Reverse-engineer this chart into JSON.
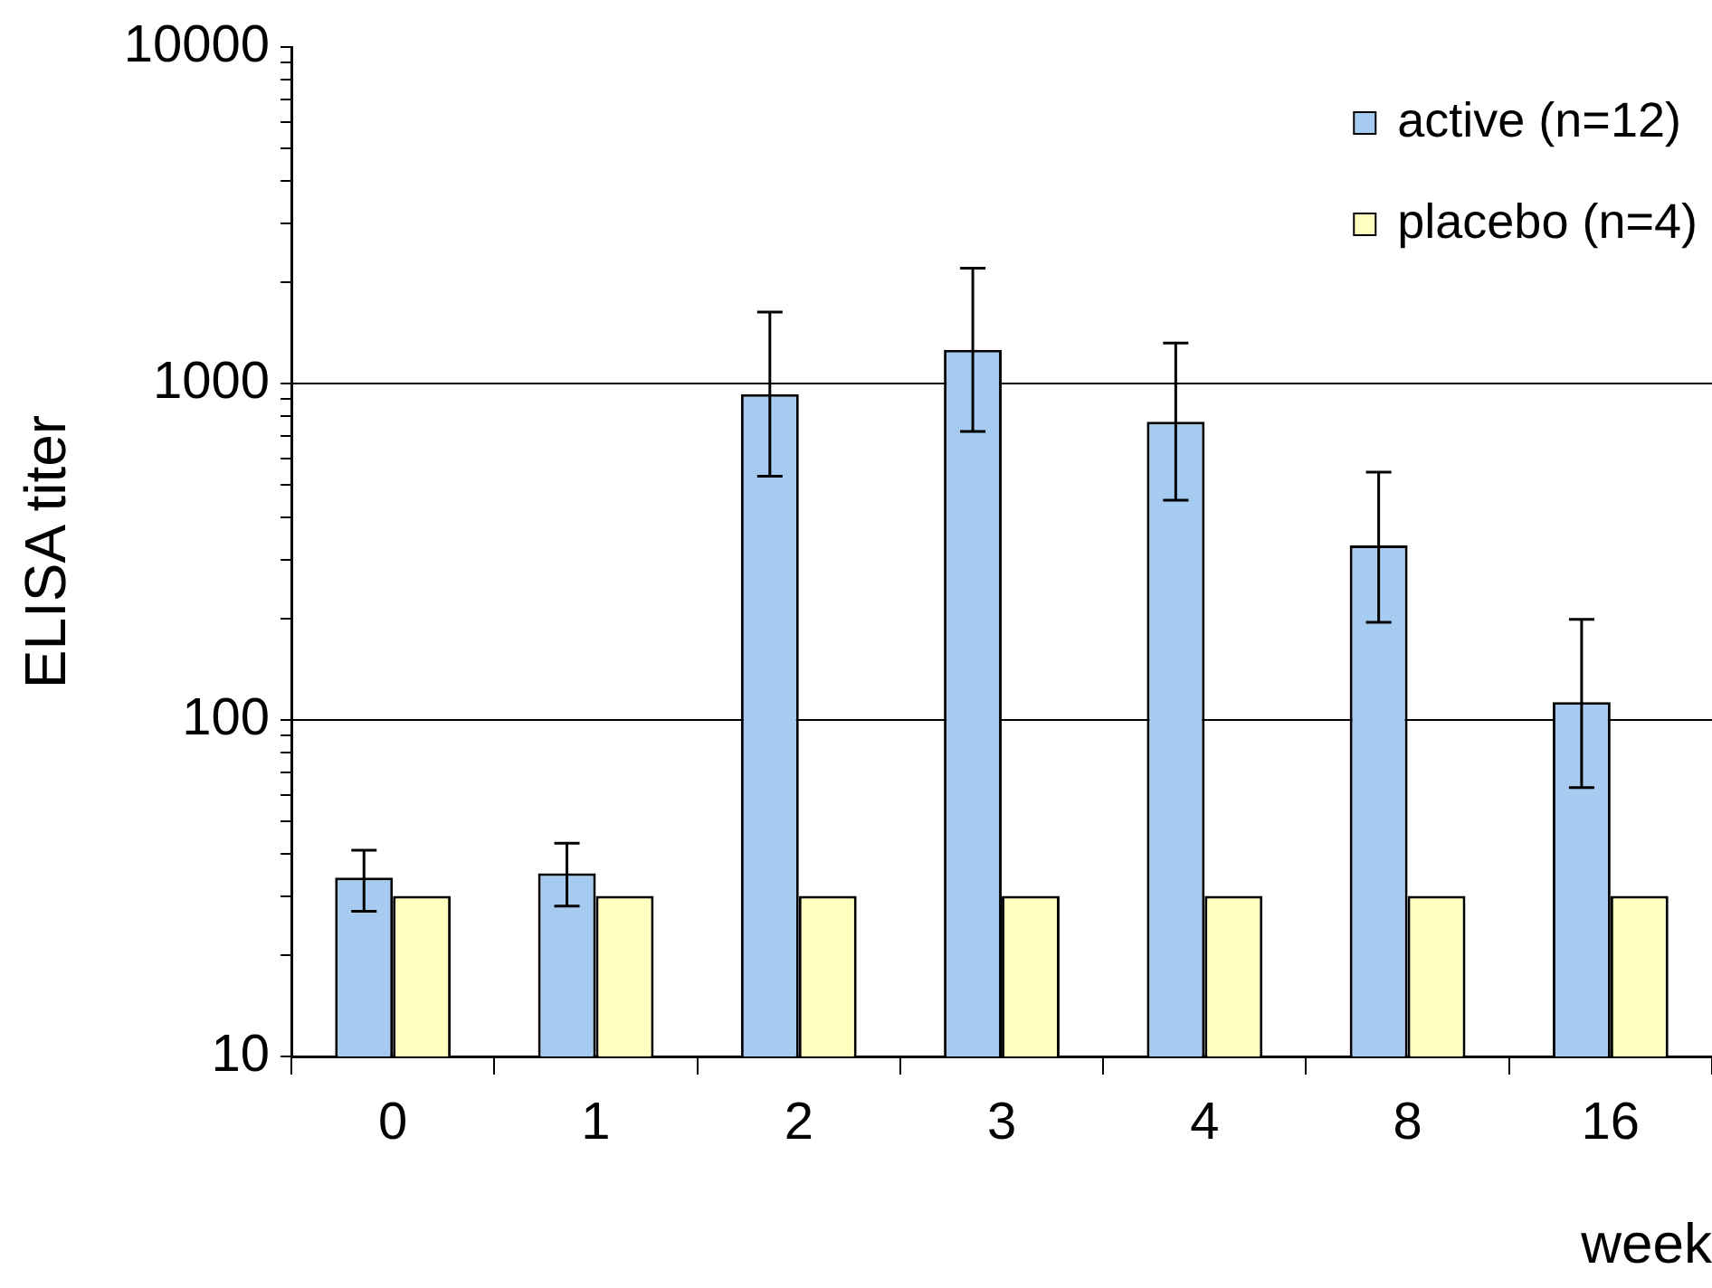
{
  "chart_data": {
    "type": "bar",
    "xlabel": "week",
    "ylabel": "ELISA titer",
    "categories": [
      "0",
      "1",
      "2",
      "3",
      "4",
      "8",
      "16"
    ],
    "series": [
      {
        "name": "active (n=12)",
        "color": "#a6caf0",
        "values": [
          34,
          35,
          930,
          1260,
          770,
          330,
          113
        ],
        "errors": [
          [
            27,
            41
          ],
          [
            28,
            43
          ],
          [
            530,
            1630
          ],
          [
            720,
            2200
          ],
          [
            450,
            1320
          ],
          [
            195,
            545
          ],
          [
            63,
            199
          ]
        ]
      },
      {
        "name": "placebo (n=4)",
        "color": "#ffffc0",
        "values": [
          30,
          30,
          30,
          30,
          30,
          30,
          30
        ]
      }
    ],
    "log": "y",
    "ylim": [
      10,
      10000
    ],
    "yticks": [
      10,
      {
        "value": 20,
        "label": null
      },
      {
        "value": 30,
        "label": null
      },
      {
        "value": 40,
        "label": null
      },
      {
        "value": 50,
        "label": null
      },
      {
        "value": 60,
        "label": null
      },
      {
        "value": 70,
        "label": null
      },
      {
        "value": 80,
        "label": null
      },
      {
        "value": 90,
        "label": null
      },
      100,
      {
        "value": 200,
        "label": null
      },
      {
        "value": 300,
        "label": null
      },
      {
        "value": 400,
        "label": null
      },
      {
        "value": 500,
        "label": null
      },
      {
        "value": 600,
        "label": null
      },
      {
        "value": 700,
        "label": null
      },
      {
        "value": 800,
        "label": null
      },
      {
        "value": 900,
        "label": null
      },
      1000,
      {
        "value": 2000,
        "label": null
      },
      {
        "value": 3000,
        "label": null
      },
      {
        "value": 4000,
        "label": null
      },
      {
        "value": 5000,
        "label": null
      },
      {
        "value": 6000,
        "label": null
      },
      {
        "value": 7000,
        "label": null
      },
      {
        "value": 8000,
        "label": null
      },
      {
        "value": 9000,
        "label": null
      },
      10000
    ],
    "grid": "y",
    "legend": "top right"
  }
}
